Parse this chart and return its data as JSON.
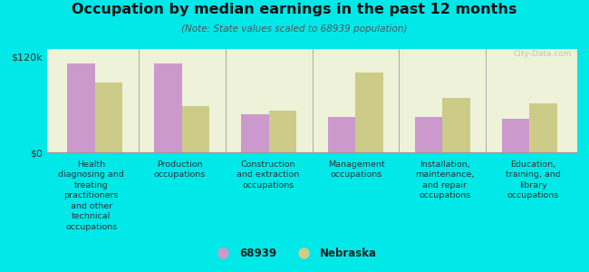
{
  "title": "Occupation by median earnings in the past 12 months",
  "subtitle": "(Note: State values scaled to 68939 population)",
  "background_color": "#00e8e8",
  "plot_bg_color": "#eef2d8",
  "categories": [
    "Health\ndiagnosing and\ntreating\npractitioners\nand other\ntechnical\noccupations",
    "Production\noccupations",
    "Construction\nand extraction\noccupations",
    "Management\noccupations",
    "Installation,\nmaintenance,\nand repair\noccupations",
    "Education,\ntraining, and\nlibrary\noccupations"
  ],
  "values_68939": [
    112000,
    112000,
    48000,
    44000,
    44000,
    42000
  ],
  "values_nebraska": [
    88000,
    58000,
    53000,
    100000,
    68000,
    62000
  ],
  "color_68939": "#cc99cc",
  "color_nebraska": "#cccc88",
  "ylim": [
    0,
    130000
  ],
  "yticks": [
    0,
    120000
  ],
  "ytick_labels": [
    "$0",
    "$120k"
  ],
  "legend_labels": [
    "68939",
    "Nebraska"
  ],
  "watermark": "City-Data.com"
}
